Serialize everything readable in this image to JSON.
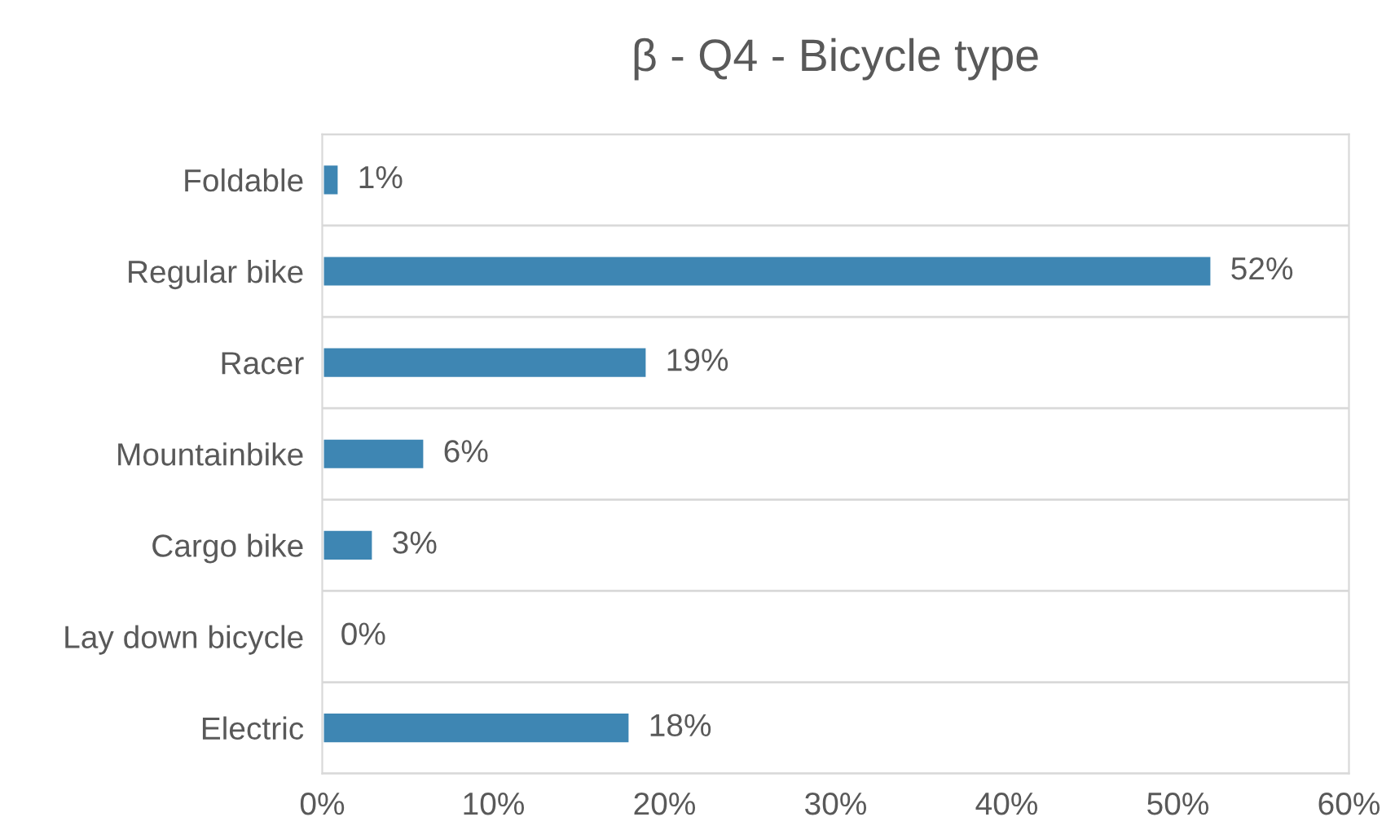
{
  "chart_data": {
    "type": "bar",
    "orientation": "horizontal",
    "title": "β - Q4 - Bicycle type",
    "categories": [
      "Foldable",
      "Regular bike",
      "Racer",
      "Mountainbike",
      "Cargo bike",
      "Lay down bicycle",
      "Electric"
    ],
    "values": [
      1,
      52,
      19,
      6,
      3,
      0,
      18
    ],
    "value_labels": [
      "1%",
      "52%",
      "19%",
      "6%",
      "3%",
      "0%",
      "18%"
    ],
    "color": "#3e86b3",
    "xlim": [
      0,
      60
    ],
    "xticks": [
      {
        "value": 0,
        "label": "0%"
      },
      {
        "value": 10,
        "label": "10%"
      },
      {
        "value": 20,
        "label": "20%"
      },
      {
        "value": 30,
        "label": "30%"
      },
      {
        "value": 40,
        "label": "40%"
      },
      {
        "value": 50,
        "label": "50%"
      },
      {
        "value": 60,
        "label": "60%"
      }
    ],
    "grid": "y"
  }
}
